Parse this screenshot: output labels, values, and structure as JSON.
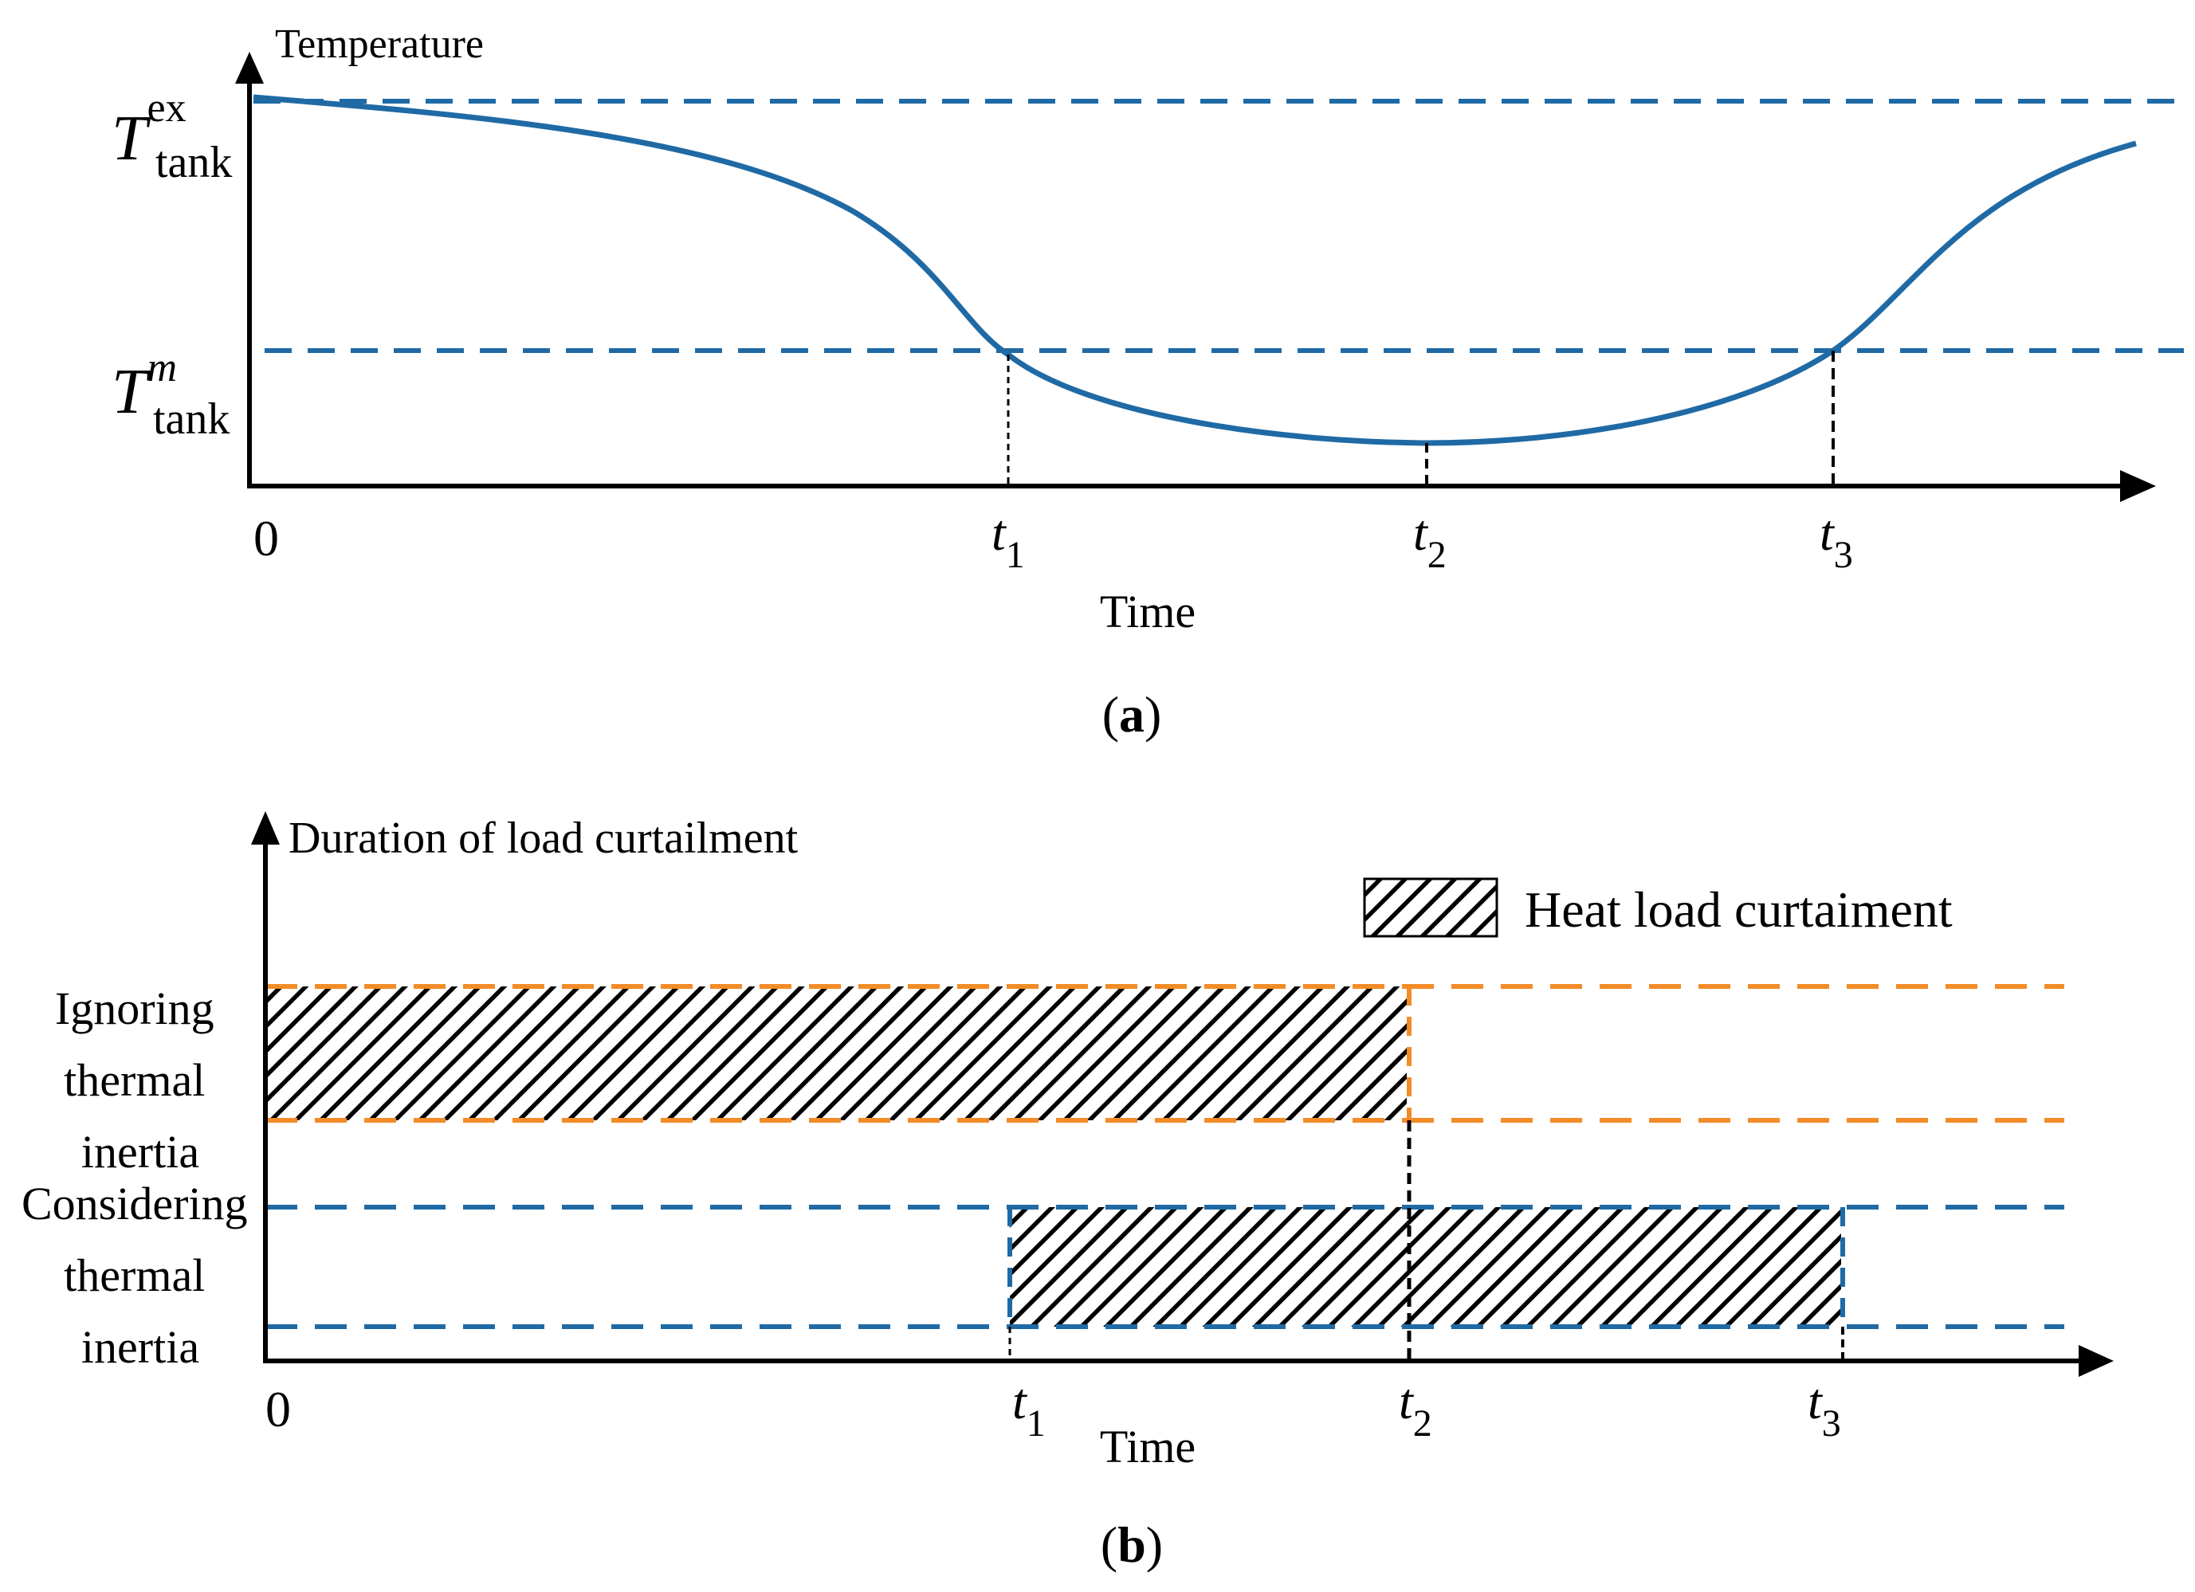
{
  "panel_a": {
    "y_axis_label": "Temperature",
    "x_axis_label": "Time",
    "origin_label": "0",
    "caption": {
      "open": "(",
      "letter": "a",
      "close": ")"
    },
    "level_labels": [
      {
        "symbol": "T",
        "sup": "ex",
        "sub": "tank"
      },
      {
        "symbol": "T",
        "sup": "m",
        "sub": "tank"
      }
    ],
    "time_ticks": [
      {
        "symbol": "t",
        "sub": "1"
      },
      {
        "symbol": "t",
        "sub": "2"
      },
      {
        "symbol": "t",
        "sub": "3"
      }
    ],
    "curve_color": "#1f6aa5",
    "reference_line_color": "#1f6aa5"
  },
  "panel_b": {
    "y_axis_label": "Duration of load curtailment",
    "x_axis_label": "Time",
    "origin_label": "0",
    "caption": {
      "open": "(",
      "letter": "b",
      "close": ")"
    },
    "legend_label": "Heat load curtaiment",
    "rows": [
      {
        "lines": [
          "Ignoring",
          "thermal",
          "inertia"
        ],
        "color": "#f28c28",
        "start": "0",
        "end": "t2"
      },
      {
        "lines": [
          "Considering",
          "thermal",
          "inertia"
        ],
        "color": "#1f6aa5",
        "start": "t1",
        "end": "t3"
      }
    ],
    "time_ticks": [
      {
        "symbol": "t",
        "sub": "1"
      },
      {
        "symbol": "t",
        "sub": "2"
      },
      {
        "symbol": "t",
        "sub": "3"
      }
    ],
    "hatch_color": "#000000"
  }
}
